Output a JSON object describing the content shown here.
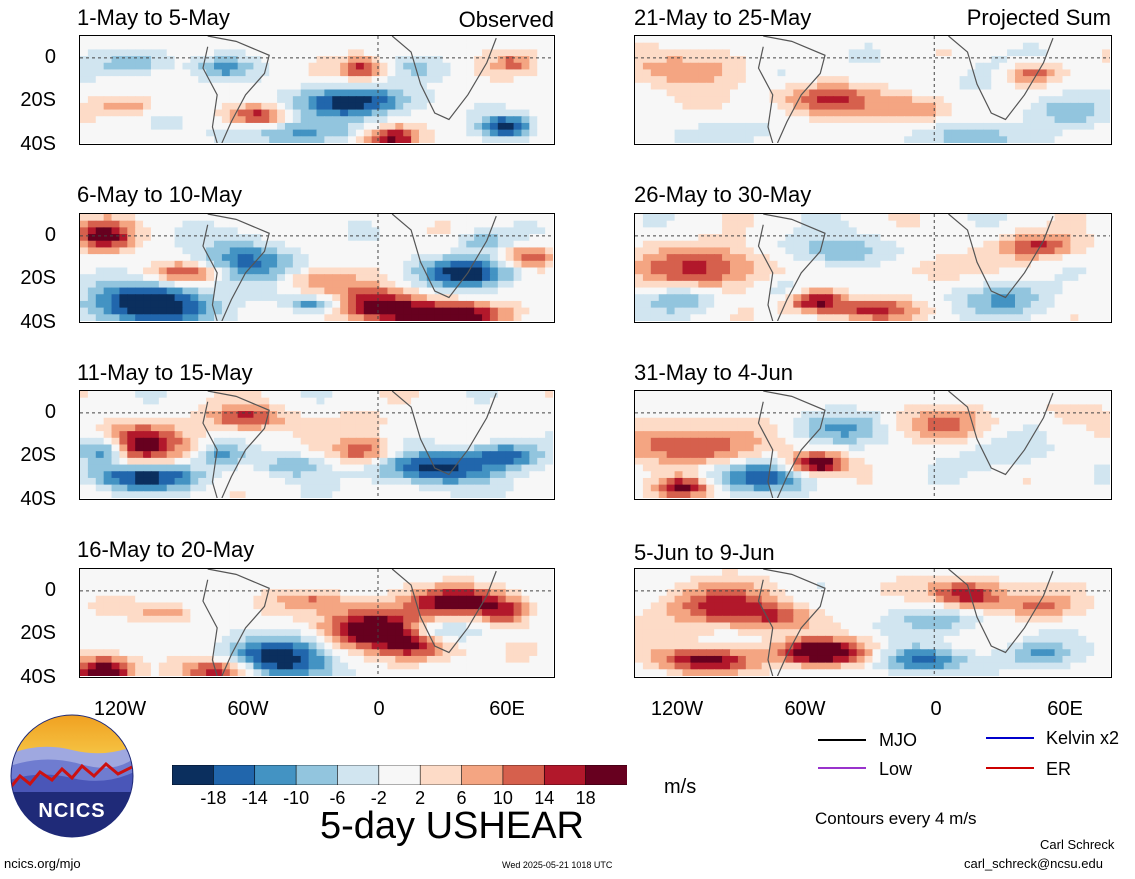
{
  "chart_data": {
    "type": "heatmap",
    "variable_title": "5-day USHEAR",
    "unit": "m/s",
    "contour_note": "Contours every 4 m/s",
    "colorbar": {
      "ticks": [
        "-18",
        "-14",
        "-10",
        "-6",
        "-2",
        "2",
        "6",
        "10",
        "14",
        "18"
      ],
      "colors": [
        "#0b2f5e",
        "#2166ac",
        "#4393c3",
        "#92c5de",
        "#d1e5f0",
        "#f7f7f7",
        "#fddbc7",
        "#f4a582",
        "#d6604d",
        "#b2182b",
        "#67001f"
      ]
    },
    "x_ticks": [
      "120W",
      "60W",
      "0",
      "60E"
    ],
    "y_ticks": [
      "0",
      "20S",
      "40S"
    ],
    "observed_label": "Observed",
    "projected_label": "Projected Sum",
    "panels_left": [
      {
        "title": "1-May to 5-May"
      },
      {
        "title": "6-May to 10-May"
      },
      {
        "title": "11-May to 15-May"
      },
      {
        "title": "16-May to 20-May"
      }
    ],
    "panels_right": [
      {
        "title": "21-May to 25-May"
      },
      {
        "title": "26-May to 30-May"
      },
      {
        "title": "31-May to 4-Jun"
      },
      {
        "title": "5-Jun to 9-Jun"
      }
    ],
    "contour_legend": [
      {
        "label": "MJO",
        "color": "#000000"
      },
      {
        "label": "Kelvin x2",
        "color": "#0000cc"
      },
      {
        "label": "Low",
        "color": "#9933cc"
      },
      {
        "label": "ER",
        "color": "#cc0000"
      }
    ]
  },
  "logo_text": "NCICS",
  "footer": {
    "left": "ncics.org/mjo",
    "center": "Wed 2025-05-21 1018 UTC",
    "author": "Carl Schreck",
    "email": "carl_schreck@ncsu.edu"
  }
}
